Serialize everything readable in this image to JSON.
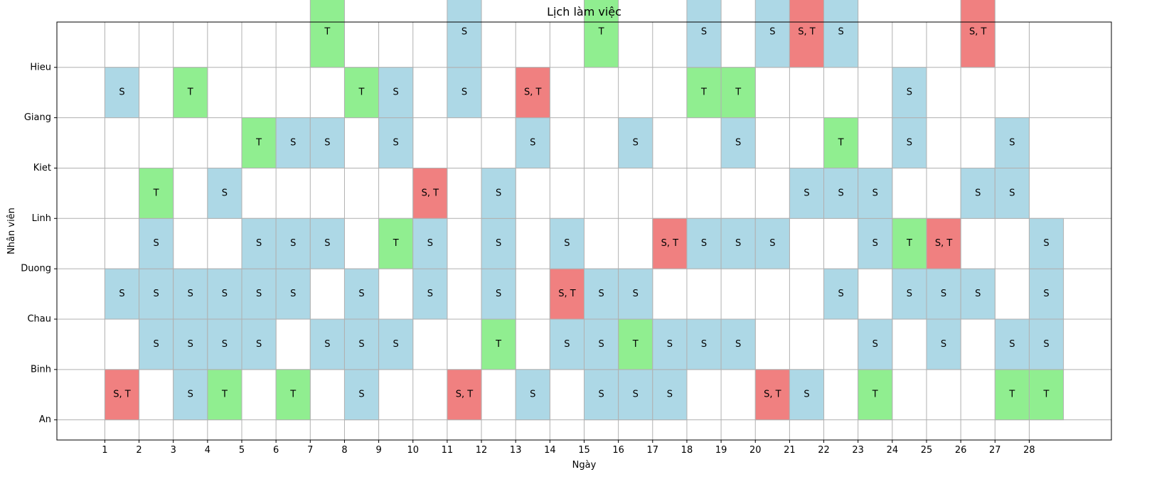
{
  "chart_data": {
    "type": "heatmap",
    "title": "Lịch làm việc",
    "xlabel": "Ngày",
    "ylabel": "Nhân viên",
    "x_ticks": [
      "1",
      "2",
      "3",
      "4",
      "5",
      "6",
      "7",
      "8",
      "9",
      "10",
      "11",
      "12",
      "13",
      "14",
      "15",
      "16",
      "17",
      "18",
      "19",
      "20",
      "21",
      "22",
      "23",
      "24",
      "25",
      "26",
      "27",
      "28"
    ],
    "y_ticks": [
      "An",
      "Binh",
      "Chau",
      "Duong",
      "Linh",
      "Kiet",
      "Giang",
      "Hieu"
    ],
    "xlim": [
      -0.4,
      30.4
    ],
    "ylim": [
      -0.4,
      7.9
    ],
    "grid": true,
    "colors": {
      "S": "#add8e6",
      "T": "#90ee90",
      "S, T": "#f08080"
    },
    "rows": [
      {
        "y": 0,
        "cells": [
          [
            1,
            "S, T"
          ],
          [
            3,
            "S"
          ],
          [
            4,
            "T"
          ],
          [
            6,
            "T"
          ],
          [
            8,
            "S"
          ],
          [
            11,
            "S, T"
          ],
          [
            13,
            "S"
          ],
          [
            15,
            "S"
          ],
          [
            16,
            "S"
          ],
          [
            17,
            "S"
          ],
          [
            20,
            "S, T"
          ],
          [
            21,
            "S"
          ],
          [
            23,
            "T"
          ],
          [
            27,
            "T"
          ],
          [
            28,
            "T"
          ]
        ]
      },
      {
        "y": 1,
        "cells": [
          [
            2,
            "S"
          ],
          [
            3,
            "S"
          ],
          [
            4,
            "S"
          ],
          [
            5,
            "S"
          ],
          [
            7,
            "S"
          ],
          [
            8,
            "S"
          ],
          [
            9,
            "S"
          ],
          [
            12,
            "T"
          ],
          [
            14,
            "S"
          ],
          [
            15,
            "S"
          ],
          [
            16,
            "T"
          ],
          [
            17,
            "S"
          ],
          [
            18,
            "S"
          ],
          [
            19,
            "S"
          ],
          [
            23,
            "S"
          ],
          [
            25,
            "S"
          ],
          [
            27,
            "S"
          ],
          [
            28,
            "S"
          ]
        ]
      },
      {
        "y": 2,
        "cells": [
          [
            1,
            "S"
          ],
          [
            2,
            "S"
          ],
          [
            3,
            "S"
          ],
          [
            4,
            "S"
          ],
          [
            5,
            "S"
          ],
          [
            6,
            "S"
          ],
          [
            8,
            "S"
          ],
          [
            10,
            "S"
          ],
          [
            12,
            "S"
          ],
          [
            14,
            "S, T"
          ],
          [
            15,
            "S"
          ],
          [
            16,
            "S"
          ],
          [
            22,
            "S"
          ],
          [
            24,
            "S"
          ],
          [
            25,
            "S"
          ],
          [
            26,
            "S"
          ],
          [
            28,
            "S"
          ]
        ]
      },
      {
        "y": 3,
        "cells": [
          [
            2,
            "S"
          ],
          [
            5,
            "S"
          ],
          [
            6,
            "S"
          ],
          [
            7,
            "S"
          ],
          [
            9,
            "T"
          ],
          [
            10,
            "S"
          ],
          [
            12,
            "S"
          ],
          [
            14,
            "S"
          ],
          [
            17,
            "S, T"
          ],
          [
            18,
            "S"
          ],
          [
            19,
            "S"
          ],
          [
            20,
            "S"
          ],
          [
            23,
            "S"
          ],
          [
            24,
            "T"
          ],
          [
            25,
            "S, T"
          ],
          [
            28,
            "S"
          ]
        ]
      },
      {
        "y": 4,
        "cells": [
          [
            2,
            "T"
          ],
          [
            4,
            "S"
          ],
          [
            10,
            "S, T"
          ],
          [
            12,
            "S"
          ],
          [
            21,
            "S"
          ],
          [
            22,
            "S"
          ],
          [
            23,
            "S"
          ],
          [
            26,
            "S"
          ],
          [
            27,
            "S"
          ]
        ]
      },
      {
        "y": 5,
        "cells": [
          [
            5,
            "T"
          ],
          [
            6,
            "S"
          ],
          [
            7,
            "S"
          ],
          [
            9,
            "S"
          ],
          [
            13,
            "S"
          ],
          [
            16,
            "S"
          ],
          [
            19,
            "S"
          ],
          [
            22,
            "T"
          ],
          [
            24,
            "S"
          ],
          [
            27,
            "S"
          ]
        ]
      },
      {
        "y": 6,
        "cells": [
          [
            1,
            "S"
          ],
          [
            3,
            "T"
          ],
          [
            8,
            "T"
          ],
          [
            9,
            "S"
          ],
          [
            11,
            "S"
          ],
          [
            13,
            "S, T"
          ],
          [
            18,
            "T"
          ],
          [
            19,
            "T"
          ],
          [
            24,
            "S"
          ]
        ]
      },
      {
        "y": 7,
        "cells": [
          [
            7,
            "T"
          ],
          [
            11,
            "S"
          ],
          [
            15,
            "T"
          ],
          [
            18,
            "S"
          ],
          [
            20,
            "S"
          ],
          [
            21,
            "S, T"
          ],
          [
            22,
            "S"
          ],
          [
            26,
            "S, T"
          ]
        ]
      }
    ]
  }
}
